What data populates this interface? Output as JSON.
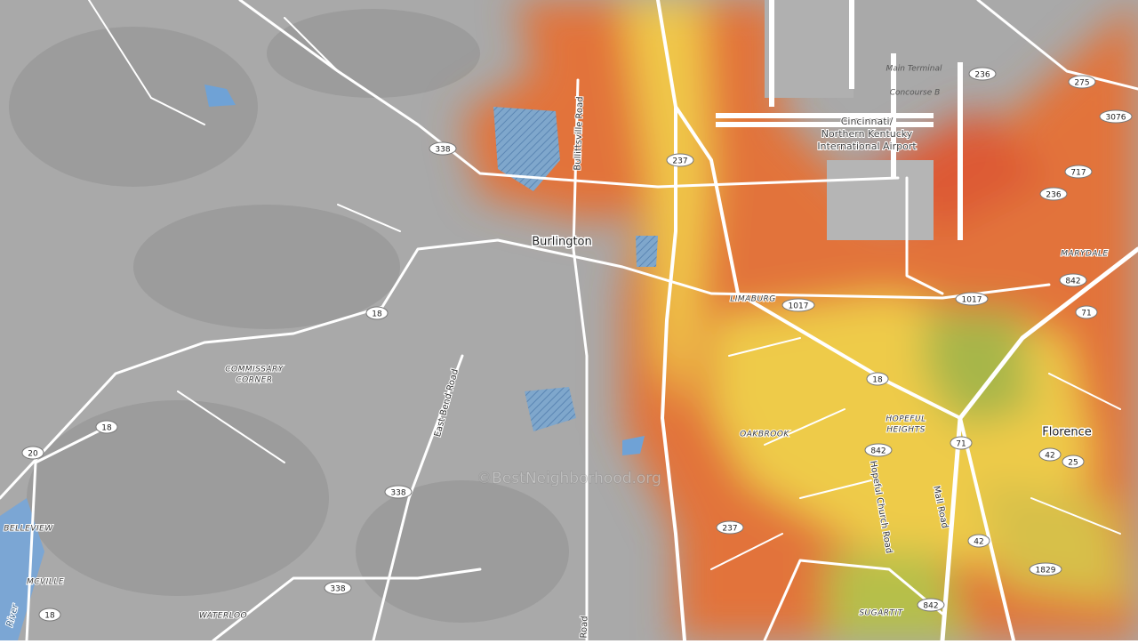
{
  "places": {
    "burlington": "Burlington",
    "florence": "Florence"
  },
  "neighborhoods": [
    "LIMABURG",
    [
      "COMMISSARY",
      "CORNER"
    ],
    "OAKBROOK",
    [
      "HOPEFUL",
      "HEIGHTS"
    ],
    "SUGARTIT",
    "MARYDALE",
    "BELLEVIEW",
    "MCVILLE",
    "WATERLOO"
  ],
  "airport": {
    "name": [
      "Cincinnati/",
      "Northern Kentucky",
      "International Airport"
    ],
    "terminal": "Main Terminal",
    "concourse": "Concourse B"
  },
  "roads": [
    "Bullittsville Road",
    "East Bend Road",
    "Hopeful Church Road",
    "Mall Road",
    "Road"
  ],
  "river": "River",
  "shields": [
    "338",
    "237",
    "236",
    "275",
    "3076",
    "717",
    "236",
    "842",
    "1017",
    "1017",
    "71",
    "18",
    "18",
    "18",
    "20",
    "842",
    "71",
    "42",
    "25",
    "338",
    "237",
    "42",
    "1829",
    "338",
    "842",
    "18"
  ],
  "watermark": "©BestNeighborhood.org"
}
